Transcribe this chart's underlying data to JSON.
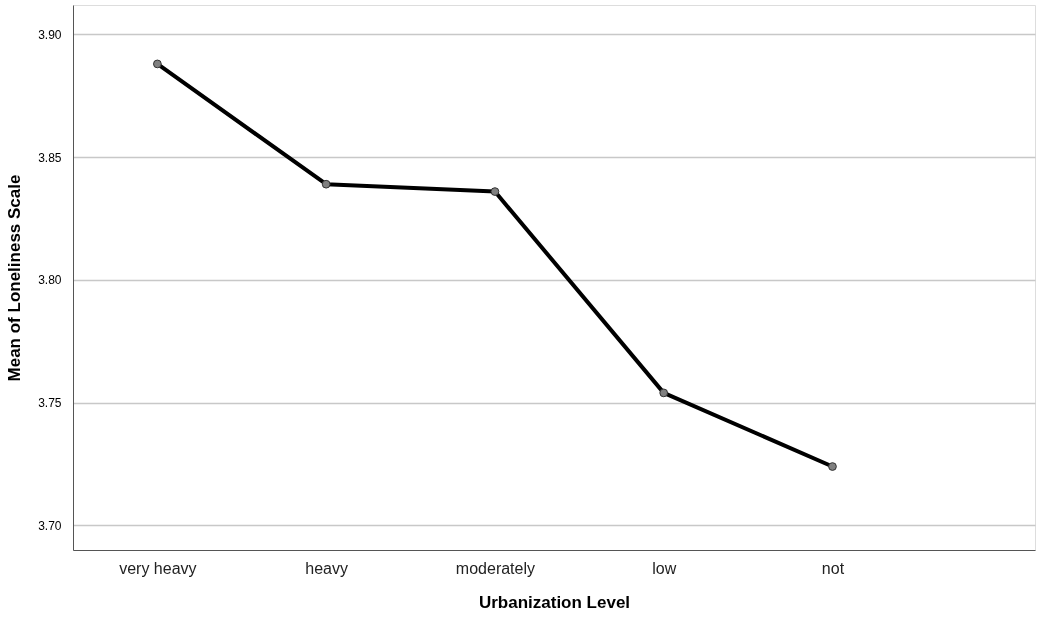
{
  "chart_data": {
    "type": "line",
    "xlabel": "Urbanization Level",
    "ylabel": "Mean of Loneliness Scale",
    "categories": [
      "very heavy",
      "heavy",
      "moderately",
      "low",
      "not"
    ],
    "series": [
      {
        "color": "#000000",
        "values": [
          3.888,
          3.839,
          3.836,
          3.754,
          3.724
        ]
      }
    ],
    "ylim": [
      3.69,
      3.912
    ],
    "yticks": [
      {
        "value": 3.7,
        "label": "3.70"
      },
      {
        "value": 3.75,
        "label": "3.75"
      },
      {
        "value": 3.8,
        "label": "3.80"
      },
      {
        "value": 3.85,
        "label": "3.85"
      },
      {
        "value": 3.9,
        "label": "3.90"
      }
    ],
    "grid": "y",
    "marker": "circle",
    "line_style": "solid"
  }
}
